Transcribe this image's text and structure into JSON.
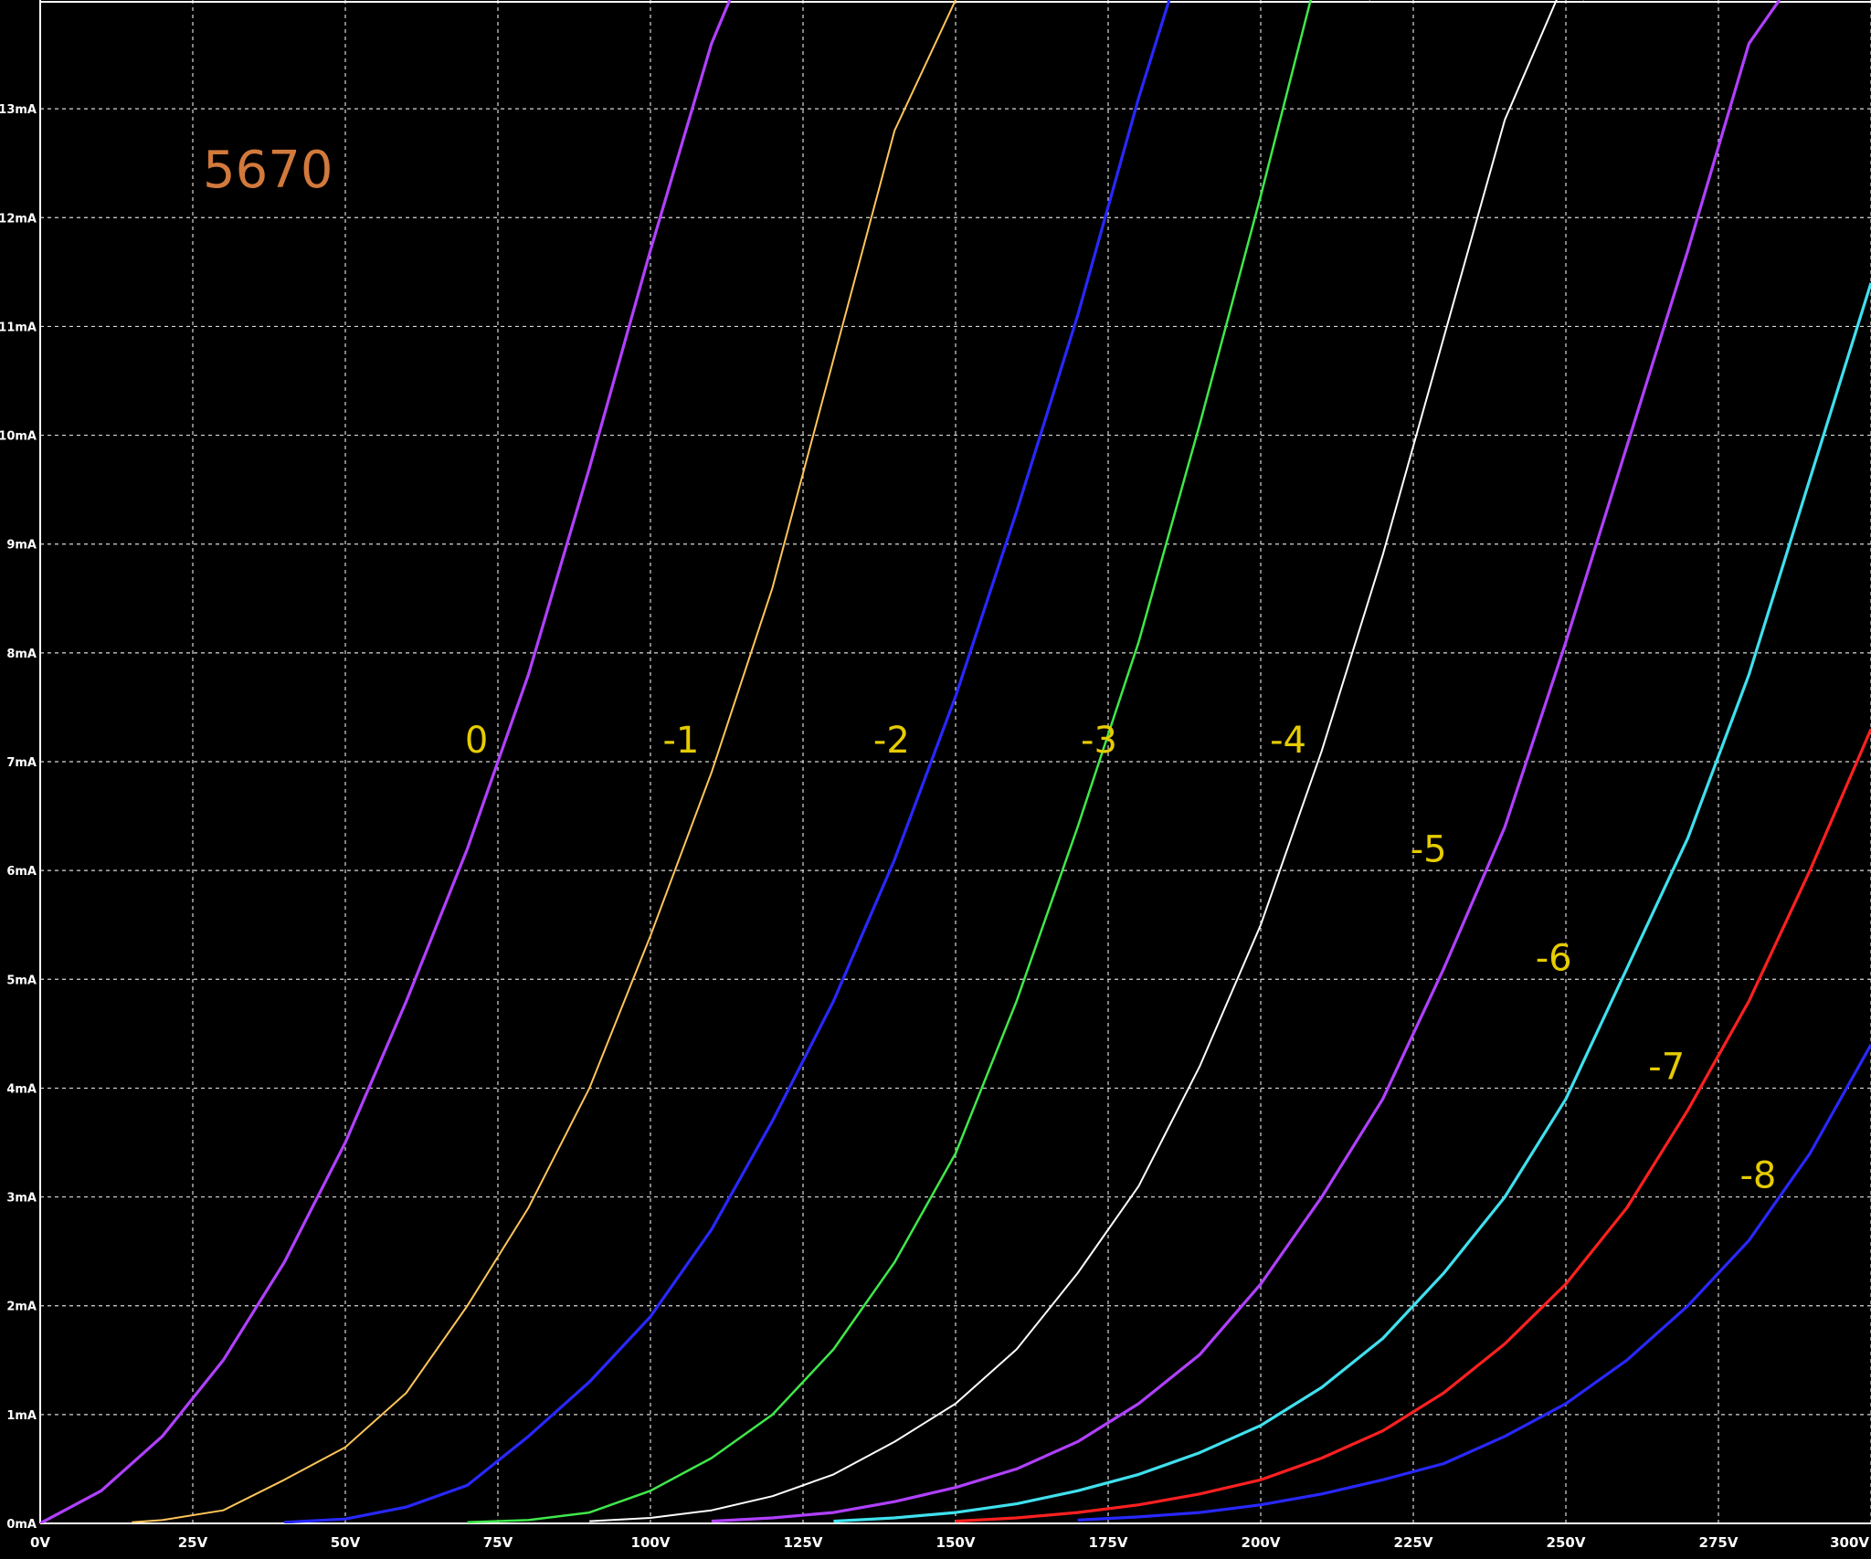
{
  "chart_data": {
    "type": "line",
    "title": "5670",
    "title_color": "#d2793c",
    "xlabel": "",
    "ylabel": "",
    "xlim": [
      0,
      300
    ],
    "ylim": [
      0,
      14
    ],
    "x_ticks": [
      0,
      25,
      50,
      75,
      100,
      125,
      150,
      175,
      200,
      225,
      250,
      275,
      300
    ],
    "x_tick_labels": [
      "0V",
      "25V",
      "50V",
      "75V",
      "100V",
      "125V",
      "150V",
      "175V",
      "200V",
      "225V",
      "250V",
      "275V",
      "300V"
    ],
    "y_ticks": [
      0,
      1,
      2,
      3,
      4,
      5,
      6,
      7,
      8,
      9,
      10,
      11,
      12,
      13
    ],
    "y_tick_labels": [
      "0mA",
      "1mA",
      "2mA",
      "3mA",
      "4mA",
      "5mA",
      "6mA",
      "7mA",
      "8mA",
      "9mA",
      "10mA",
      "11mA",
      "12mA",
      "13mA"
    ],
    "grid": true,
    "grid_color": "#d8d8d8",
    "axis_color": "#ffffff",
    "background": "#000000",
    "label_color": "#e6cc00",
    "series": [
      {
        "name": "0",
        "color": "#b040ff",
        "x": [
          0,
          10,
          20,
          30,
          40,
          50,
          60,
          70,
          80,
          90,
          100,
          110,
          113
        ],
        "y": [
          0,
          0.3,
          0.8,
          1.5,
          2.4,
          3.5,
          4.8,
          6.2,
          7.8,
          9.7,
          11.7,
          13.6,
          14
        ]
      },
      {
        "name": "-1",
        "color": "#ffc55a",
        "x": [
          15,
          20,
          30,
          40,
          50,
          60,
          70,
          80,
          90,
          100,
          110,
          120,
          130,
          140,
          150
        ],
        "y": [
          0.01,
          0.03,
          0.12,
          0.4,
          0.7,
          1.2,
          2,
          2.9,
          4,
          5.4,
          6.9,
          8.6,
          10.7,
          12.8,
          14
        ]
      },
      {
        "name": "-2",
        "color": "#2828ff",
        "x": [
          40,
          50,
          60,
          70,
          80,
          90,
          100,
          110,
          120,
          130,
          140,
          150,
          160,
          170,
          180,
          185
        ],
        "y": [
          0.01,
          0.04,
          0.15,
          0.35,
          0.8,
          1.3,
          1.9,
          2.7,
          3.7,
          4.8,
          6.1,
          7.6,
          9.3,
          11.1,
          13.1,
          14
        ]
      },
      {
        "name": "-3",
        "color": "#3fe84a",
        "x": [
          70,
          80,
          90,
          100,
          110,
          120,
          130,
          140,
          150,
          160,
          170,
          180,
          190,
          200,
          210,
          218
        ],
        "y": [
          0.01,
          0.03,
          0.1,
          0.3,
          0.6,
          1,
          1.6,
          2.4,
          3.4,
          4.8,
          6.4,
          8.1,
          10.1,
          12.2,
          14.4,
          14
        ]
      },
      {
        "name": "-4",
        "color": "#ffffff",
        "x": [
          90,
          100,
          110,
          120,
          130,
          140,
          150,
          160,
          170,
          180,
          190,
          200,
          210,
          220,
          230,
          240,
          250,
          253
        ],
        "y": [
          0.02,
          0.05,
          0.12,
          0.25,
          0.45,
          0.75,
          1.1,
          1.6,
          2.3,
          3.1,
          4.2,
          5.5,
          7.1,
          8.9,
          10.9,
          12.9,
          14.2,
          14
        ]
      },
      {
        "name": "-5",
        "color": "#b040ff",
        "x": [
          110,
          120,
          130,
          140,
          150,
          160,
          170,
          180,
          190,
          200,
          210,
          220,
          230,
          240,
          250,
          260,
          270,
          280,
          285
        ],
        "y": [
          0.02,
          0.05,
          0.1,
          0.2,
          0.33,
          0.5,
          0.75,
          1.1,
          1.55,
          2.2,
          3,
          3.9,
          5.1,
          6.4,
          8.1,
          9.9,
          11.7,
          13.6,
          14
        ]
      },
      {
        "name": "-6",
        "color": "#40e0ee",
        "x": [
          130,
          140,
          150,
          160,
          170,
          180,
          190,
          200,
          210,
          220,
          230,
          240,
          250,
          260,
          270,
          280,
          290,
          300
        ],
        "y": [
          0.02,
          0.05,
          0.1,
          0.18,
          0.3,
          0.45,
          0.65,
          0.9,
          1.25,
          1.7,
          2.3,
          3,
          3.9,
          5.1,
          6.3,
          7.8,
          9.6,
          11.4
        ]
      },
      {
        "name": "-7",
        "color": "#ff2020",
        "x": [
          150,
          160,
          170,
          180,
          190,
          200,
          210,
          220,
          230,
          240,
          250,
          260,
          270,
          280,
          290,
          300
        ],
        "y": [
          0.02,
          0.05,
          0.1,
          0.17,
          0.27,
          0.4,
          0.6,
          0.85,
          1.2,
          1.65,
          2.2,
          2.9,
          3.8,
          4.8,
          6,
          7.3
        ]
      },
      {
        "name": "-8",
        "color": "#2828ff",
        "x": [
          170,
          180,
          190,
          200,
          210,
          220,
          230,
          240,
          250,
          260,
          270,
          280,
          290,
          300
        ],
        "y": [
          0.03,
          0.06,
          0.1,
          0.17,
          0.27,
          0.4,
          0.55,
          0.8,
          1.1,
          1.5,
          2,
          2.6,
          3.4,
          4.4
        ]
      }
    ],
    "curve_labels": [
      {
        "text": "0",
        "x": 71.5,
        "y": 7.2
      },
      {
        "text": "-1",
        "x": 105,
        "y": 7.2
      },
      {
        "text": "-2",
        "x": 139.5,
        "y": 7.2
      },
      {
        "text": "-3",
        "x": 173.5,
        "y": 7.2
      },
      {
        "text": "-4",
        "x": 204.5,
        "y": 7.2
      },
      {
        "text": "-5",
        "x": 227.5,
        "y": 6.2
      },
      {
        "text": "-6",
        "x": 248,
        "y": 5.2
      },
      {
        "text": "-7",
        "x": 266.5,
        "y": 4.2
      },
      {
        "text": "-8",
        "x": 281.5,
        "y": 3.2
      }
    ]
  }
}
